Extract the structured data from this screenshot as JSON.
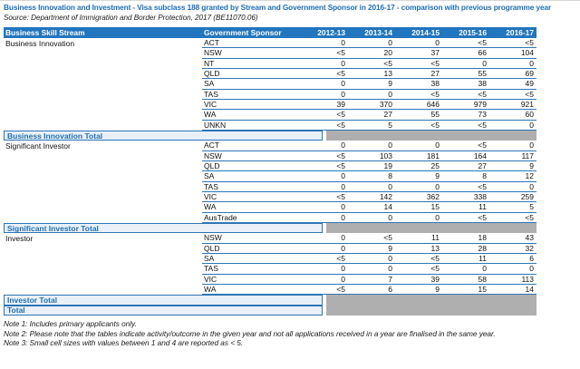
{
  "title": "Business Innovation and Investment - Visa subclass 188 granted by Stream and Government Sponsor in 2016-17 - comparison with previous programme year",
  "source": "Source: Department of Immigration and Border Protection, 2017 (BE11070.06)",
  "colors": {
    "header_blue": "#2176BE",
    "line_blue": "#2E75B6",
    "title_blue": "#1F6DB6",
    "total_fill": "#E9F0F7",
    "total_text": "#2270B4",
    "grey_fill": "#AFAFAF"
  },
  "table": {
    "columns": [
      "Business Skill Stream",
      "Government Sponsor",
      "2012-13",
      "2013-14",
      "2014-15",
      "2015-16",
      "2016-17"
    ],
    "groups": [
      {
        "stream": "Business Innovation",
        "total_label": "Business Innovation Total",
        "rows": [
          {
            "sponsor": "ACT",
            "values": [
              "0",
              "0",
              "0",
              "<5",
              "<5"
            ]
          },
          {
            "sponsor": "NSW",
            "values": [
              "<5",
              "20",
              "37",
              "66",
              "104"
            ]
          },
          {
            "sponsor": "NT",
            "values": [
              "0",
              "<5",
              "<5",
              "0",
              "0"
            ]
          },
          {
            "sponsor": "QLD",
            "values": [
              "<5",
              "13",
              "27",
              "55",
              "69"
            ]
          },
          {
            "sponsor": "SA",
            "values": [
              "0",
              "9",
              "38",
              "38",
              "49"
            ]
          },
          {
            "sponsor": "TAS",
            "values": [
              "0",
              "0",
              "<5",
              "<5",
              "<5"
            ]
          },
          {
            "sponsor": "VIC",
            "values": [
              "39",
              "370",
              "646",
              "979",
              "921"
            ]
          },
          {
            "sponsor": "WA",
            "values": [
              "<5",
              "27",
              "55",
              "73",
              "60"
            ]
          },
          {
            "sponsor": "UNKN",
            "values": [
              "<5",
              "5",
              "<5",
              "<5",
              "0"
            ]
          }
        ]
      },
      {
        "stream": "Significant Investor",
        "total_label": "Significant Investor Total",
        "rows": [
          {
            "sponsor": "ACT",
            "values": [
              "0",
              "0",
              "0",
              "<5",
              "0"
            ]
          },
          {
            "sponsor": "NSW",
            "values": [
              "<5",
              "103",
              "181",
              "164",
              "117"
            ]
          },
          {
            "sponsor": "QLD",
            "values": [
              "<5",
              "19",
              "25",
              "27",
              "9"
            ]
          },
          {
            "sponsor": "SA",
            "values": [
              "0",
              "8",
              "9",
              "8",
              "12"
            ]
          },
          {
            "sponsor": "TAS",
            "values": [
              "0",
              "0",
              "0",
              "<5",
              "0"
            ]
          },
          {
            "sponsor": "VIC",
            "values": [
              "<5",
              "142",
              "362",
              "338",
              "259"
            ]
          },
          {
            "sponsor": "WA",
            "values": [
              "0",
              "14",
              "15",
              "11",
              "5"
            ]
          },
          {
            "sponsor": "AusTrade",
            "values": [
              "0",
              "0",
              "0",
              "<5",
              "<5"
            ]
          }
        ]
      },
      {
        "stream": "Investor",
        "total_label": "Investor Total",
        "rows": [
          {
            "sponsor": "NSW",
            "values": [
              "0",
              "<5",
              "11",
              "18",
              "43"
            ]
          },
          {
            "sponsor": "QLD",
            "values": [
              "0",
              "9",
              "13",
              "28",
              "32"
            ]
          },
          {
            "sponsor": "SA",
            "values": [
              "<5",
              "0",
              "<5",
              "11",
              "6"
            ]
          },
          {
            "sponsor": "TAS",
            "values": [
              "0",
              "0",
              "<5",
              "0",
              "0"
            ]
          },
          {
            "sponsor": "VIC",
            "values": [
              "0",
              "7",
              "39",
              "58",
              "113"
            ]
          },
          {
            "sponsor": "WA",
            "values": [
              "<5",
              "6",
              "9",
              "15",
              "14"
            ]
          }
        ]
      }
    ],
    "grand_total_label": "Total"
  },
  "notes": [
    "Note 1: Includes primary applicants only.",
    "Note 2: Please note that the tables indicate activity/outcome in the given year and not all applications received in a year are finalised in the same year.",
    "Note 3: Small cell sizes with values between 1 and 4 are reported as < 5."
  ]
}
